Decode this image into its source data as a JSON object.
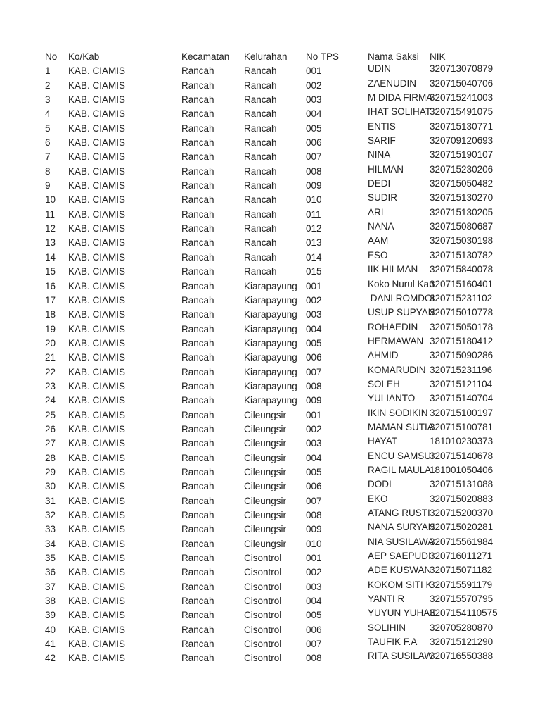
{
  "columns": [
    "No",
    "Ko/Kab",
    "Kecamatan",
    "Kelurahan",
    "No TPS",
    "Nama Saksi",
    "NIK"
  ],
  "rows": [
    [
      "1",
      "KAB. CIAMIS",
      "Rancah",
      "Rancah",
      "001",
      "UDIN",
      "320713070879"
    ],
    [
      "2",
      "KAB. CIAMIS",
      "Rancah",
      "Rancah",
      "002",
      "ZAENUDIN",
      "320715040706"
    ],
    [
      "3",
      "KAB. CIAMIS",
      "Rancah",
      "Rancah",
      "003",
      "M DIDA FIRMA",
      "320715241003"
    ],
    [
      "4",
      "KAB. CIAMIS",
      "Rancah",
      "Rancah",
      "004",
      "IHAT SOLIHAT",
      "320715491075"
    ],
    [
      "5",
      "KAB. CIAMIS",
      "Rancah",
      "Rancah",
      "005",
      "ENTIS",
      "320715130771"
    ],
    [
      "6",
      "KAB. CIAMIS",
      "Rancah",
      "Rancah",
      "006",
      "SARIF",
      "320709120693"
    ],
    [
      "7",
      "KAB. CIAMIS",
      "Rancah",
      "Rancah",
      "007",
      "NINA",
      "320715190107"
    ],
    [
      "8",
      "KAB. CIAMIS",
      "Rancah",
      "Rancah",
      "008",
      "HILMAN",
      "320715230206"
    ],
    [
      "9",
      "KAB. CIAMIS",
      "Rancah",
      "Rancah",
      "009",
      "DEDI",
      "320715050482"
    ],
    [
      "10",
      "KAB. CIAMIS",
      "Rancah",
      "Rancah",
      "010",
      "SUDIR",
      "320715130270"
    ],
    [
      "11",
      "KAB. CIAMIS",
      "Rancah",
      "Rancah",
      "011",
      "ARI",
      "320715130205"
    ],
    [
      "12",
      "KAB. CIAMIS",
      "Rancah",
      "Rancah",
      "012",
      "NANA",
      "320715080687"
    ],
    [
      "13",
      "KAB. CIAMIS",
      "Rancah",
      "Rancah",
      "013",
      "AAM",
      "320715030198"
    ],
    [
      "14",
      "KAB. CIAMIS",
      "Rancah",
      "Rancah",
      "014",
      "ESO",
      "320715130782"
    ],
    [
      "15",
      "KAB. CIAMIS",
      "Rancah",
      "Rancah",
      "015",
      "IIK HILMAN",
      "320715840078"
    ],
    [
      "16",
      "KAB. CIAMIS",
      "Rancah",
      "Kiarapayung",
      "001",
      "Koko Nurul Kan",
      "320715160401"
    ],
    [
      "17",
      "KAB. CIAMIS",
      "Rancah",
      "Kiarapayung",
      "002",
      " DANI ROMDOI",
      "320715231102"
    ],
    [
      "18",
      "KAB. CIAMIS",
      "Rancah",
      "Kiarapayung",
      "003",
      "USUP SUPYAN",
      "320715010778"
    ],
    [
      "19",
      "KAB. CIAMIS",
      "Rancah",
      "Kiarapayung",
      "004",
      "ROHAEDIN",
      "320715050178"
    ],
    [
      "20",
      "KAB. CIAMIS",
      "Rancah",
      "Kiarapayung",
      "005",
      "HERMAWAN",
      "320715180412"
    ],
    [
      "21",
      "KAB. CIAMIS",
      "Rancah",
      "Kiarapayung",
      "006",
      "AHMID",
      "320715090286"
    ],
    [
      "22",
      "KAB. CIAMIS",
      "Rancah",
      "Kiarapayung",
      "007",
      "KOMARUDIN",
      "320715231196"
    ],
    [
      "23",
      "KAB. CIAMIS",
      "Rancah",
      "Kiarapayung",
      "008",
      "SOLEH",
      "320715121104"
    ],
    [
      "24",
      "KAB. CIAMIS",
      "Rancah",
      "Kiarapayung",
      "009",
      "YULIANTO",
      "320715140704"
    ],
    [
      "25",
      "KAB. CIAMIS",
      "Rancah",
      "Cileungsir",
      "001",
      "IKIN SODIKIN",
      "320715100197"
    ],
    [
      "26",
      "KAB. CIAMIS",
      "Rancah",
      "Cileungsir",
      "002",
      "MAMAN SUTIA",
      "320715100781"
    ],
    [
      "27",
      "KAB. CIAMIS",
      "Rancah",
      "Cileungsir",
      "003",
      "HAYAT",
      "181010230373"
    ],
    [
      "28",
      "KAB. CIAMIS",
      "Rancah",
      "Cileungsir",
      "004",
      "ENCU SAMSUI",
      "320715140678"
    ],
    [
      "29",
      "KAB. CIAMIS",
      "Rancah",
      "Cileungsir",
      "005",
      "RAGIL MAULA",
      "181001050406"
    ],
    [
      "30",
      "KAB. CIAMIS",
      "Rancah",
      "Cileungsir",
      "006",
      "DODI",
      "320715131088"
    ],
    [
      "31",
      "KAB. CIAMIS",
      "Rancah",
      "Cileungsir",
      "007",
      "EKO",
      "320715020883"
    ],
    [
      "32",
      "KAB. CIAMIS",
      "Rancah",
      "Cileungsir",
      "008",
      "ATANG RUSTI",
      "320715200370"
    ],
    [
      "33",
      "KAB. CIAMIS",
      "Rancah",
      "Cileungsir",
      "009",
      "NANA SURYAN",
      "320715020281"
    ],
    [
      "34",
      "KAB. CIAMIS",
      "Rancah",
      "Cileungsir",
      "010",
      "NIA SUSILAWA",
      "320715561984"
    ],
    [
      "35",
      "KAB. CIAMIS",
      "Rancah",
      "Cisontrol",
      "001",
      "AEP SAEPUDII",
      "320716011271"
    ],
    [
      "36",
      "KAB. CIAMIS",
      "Rancah",
      "Cisontrol",
      "002",
      "ADE KUSWAN",
      "320715071182"
    ],
    [
      "37",
      "KAB. CIAMIS",
      "Rancah",
      "Cisontrol",
      "003",
      "KOKOM SITI K",
      "320715591179"
    ],
    [
      "38",
      "KAB. CIAMIS",
      "Rancah",
      "Cisontrol",
      "004",
      "YANTI R",
      "320715570795"
    ],
    [
      "39",
      "KAB. CIAMIS",
      "Rancah",
      "Cisontrol",
      "005",
      "YUYUN YUHAE",
      "3207154110575"
    ],
    [
      "40",
      "KAB. CIAMIS",
      "Rancah",
      "Cisontrol",
      "006",
      "SOLIHIN",
      "320705280870"
    ],
    [
      "41",
      "KAB. CIAMIS",
      "Rancah",
      "Cisontrol",
      "007",
      "TAUFIK F.A",
      "320715121290"
    ],
    [
      "42",
      "KAB. CIAMIS",
      "Rancah",
      "Cisontrol",
      "008",
      "RITA SUSILAW",
      "320716550388"
    ]
  ]
}
